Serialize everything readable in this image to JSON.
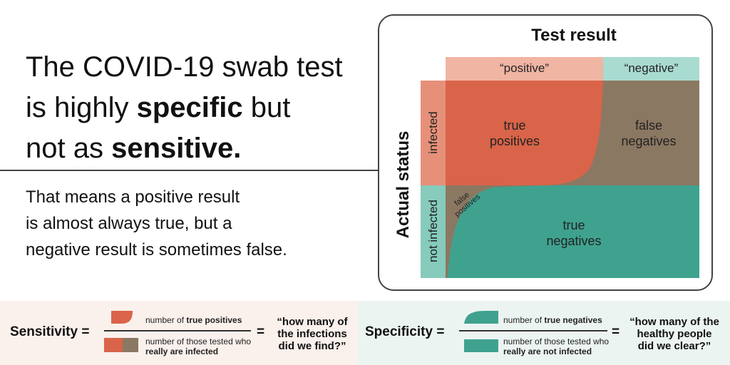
{
  "headline": {
    "line1": "The COVID-19 swab test",
    "line2_pre": "is highly ",
    "line2_bold": "specific",
    "line2_post": " but",
    "line3_pre": "not as ",
    "line3_bold": "sensitive."
  },
  "subtext": {
    "line1": "That means a positive result",
    "line2": "is almost always true, but a",
    "line3": "negative result is sometimes false."
  },
  "diagram": {
    "test_result_title": "Test result",
    "actual_status_title": "Actual status",
    "col_positive": "“positive”",
    "col_negative": "“negative”",
    "row_infected": "infected",
    "row_not_infected": "not infected",
    "true_positives_1": "true",
    "true_positives_2": "positives",
    "false_negatives_1": "false",
    "false_negatives_2": "negatives",
    "true_negatives_1": "true",
    "true_negatives_2": "negatives",
    "false_positives_1": "false",
    "false_positives_2": "positives"
  },
  "formulas": {
    "sensitivity": {
      "label": "Sensitivity =",
      "numerator_pre": "number of ",
      "numerator_bold": "true positives",
      "denominator_line1": "number of those tested who",
      "denominator_bold": "really are infected",
      "equals": "=",
      "quote_line1": "“how many of",
      "quote_line2": "the infections",
      "quote_line3": "did we find?”"
    },
    "specificity": {
      "label": "Specificity =",
      "numerator_pre": "number of ",
      "numerator_bold": "true negatives",
      "denominator_line1": "number of those tested who",
      "denominator_bold": "really are not infected",
      "equals": "=",
      "quote_line1": "“how many of the",
      "quote_line2": "healthy people",
      "quote_line3": "did we clear?”"
    }
  },
  "colors": {
    "true_positive": "#d9644a",
    "false_negative": "#8b7862",
    "true_negative": "#3fa28f",
    "positive_header": "#f0b5a3",
    "negative_header": "#a9dbd0",
    "infected_header": "#e6907a",
    "not_infected_header": "#86cbbc"
  }
}
